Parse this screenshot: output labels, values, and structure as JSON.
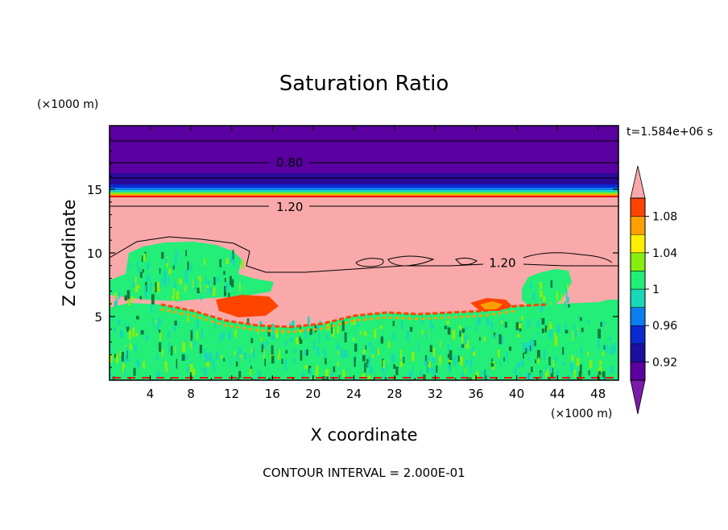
{
  "chart_data": {
    "type": "heatmap",
    "title": "Saturation Ratio",
    "xlabel": "X coordinate",
    "ylabel": "Z coordinate",
    "x_unit": "(×1000 m)",
    "y_unit": "(×1000 m)",
    "time_label": "t=1.584e+06 s",
    "footer": "CONTOUR INTERVAL = 2.000E-01",
    "xlim": [
      0,
      50
    ],
    "ylim": [
      0,
      20
    ],
    "x_ticks": [
      4,
      8,
      12,
      16,
      20,
      24,
      28,
      32,
      36,
      40,
      44,
      48
    ],
    "x_tick_labels": [
      "4",
      "8",
      "12",
      "16",
      "20",
      "24",
      "28",
      "32",
      "36",
      "40",
      "44",
      "48"
    ],
    "y_ticks": [
      5,
      10,
      15
    ],
    "y_tick_labels": [
      "5",
      "10",
      "15"
    ],
    "contour_labels": [
      {
        "text": "0.80",
        "x": 17.7,
        "z": 17.1
      },
      {
        "text": "1.20",
        "x": 17.7,
        "z": 13.6
      },
      {
        "text": "1.20",
        "x": 38.6,
        "z": 9.2
      }
    ],
    "colorbar": {
      "levels": [
        0.9,
        0.92,
        0.94,
        0.96,
        0.98,
        1.0,
        1.02,
        1.04,
        1.06,
        1.08,
        1.1
      ],
      "colors": [
        "#5a00a0",
        "#1a0fa0",
        "#0a2ad0",
        "#0a7ff0",
        "#18d8b8",
        "#22ee78",
        "#88ee10",
        "#ffee00",
        "#ffa000",
        "#ff4400",
        "#ee1010"
      ],
      "under_color": "#7a1aaa",
      "over_color": "#f9a9a9",
      "labels": [
        "0.92",
        "0.96",
        "1",
        "1.04",
        "1.08"
      ],
      "label_values": [
        0.92,
        0.96,
        1.0,
        1.04,
        1.08
      ]
    }
  }
}
